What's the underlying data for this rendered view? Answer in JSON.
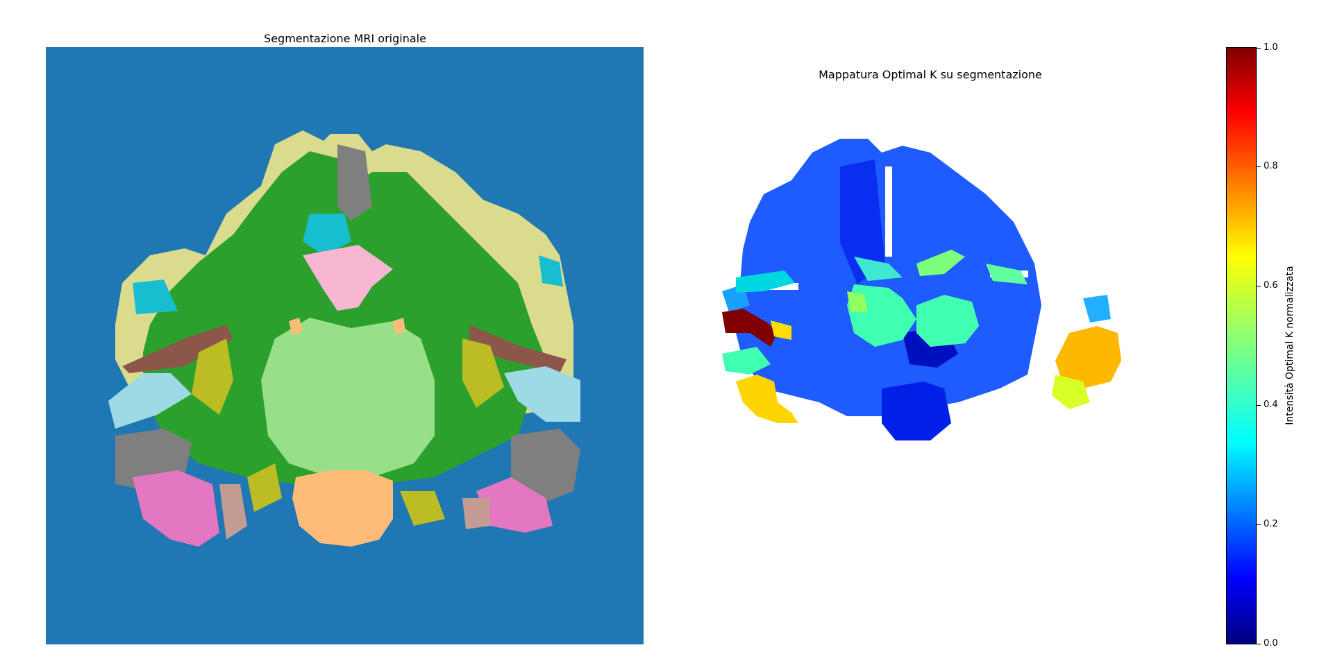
{
  "left": {
    "title": "Segmentazione MRI originale"
  },
  "right": {
    "title": "Mappatura Optimal K su segmentazione"
  },
  "colorbar": {
    "label": "Intensità Optimal K normalizzata",
    "colormap": "jet",
    "range": [
      0.0,
      1.0
    ],
    "ticks": [
      "0.0",
      "0.2",
      "0.4",
      "0.6",
      "0.8",
      "1.0"
    ]
  },
  "colors": {
    "background": "#1f77b4",
    "white_matter": "#2ca02c",
    "cortex": "#dbdb8d",
    "thalamus": "#98df8a",
    "brainstem": "#ffbb78",
    "ventricle": "#f7b6d2",
    "insula": "#bcbd22",
    "amygdala_hippocampus": "#e377c2",
    "cerebellum_gray": "#7f7f7f",
    "putamen": "#8c564b",
    "cyan_regions": "#17becf",
    "light_blue_regions": "#9edae5"
  }
}
